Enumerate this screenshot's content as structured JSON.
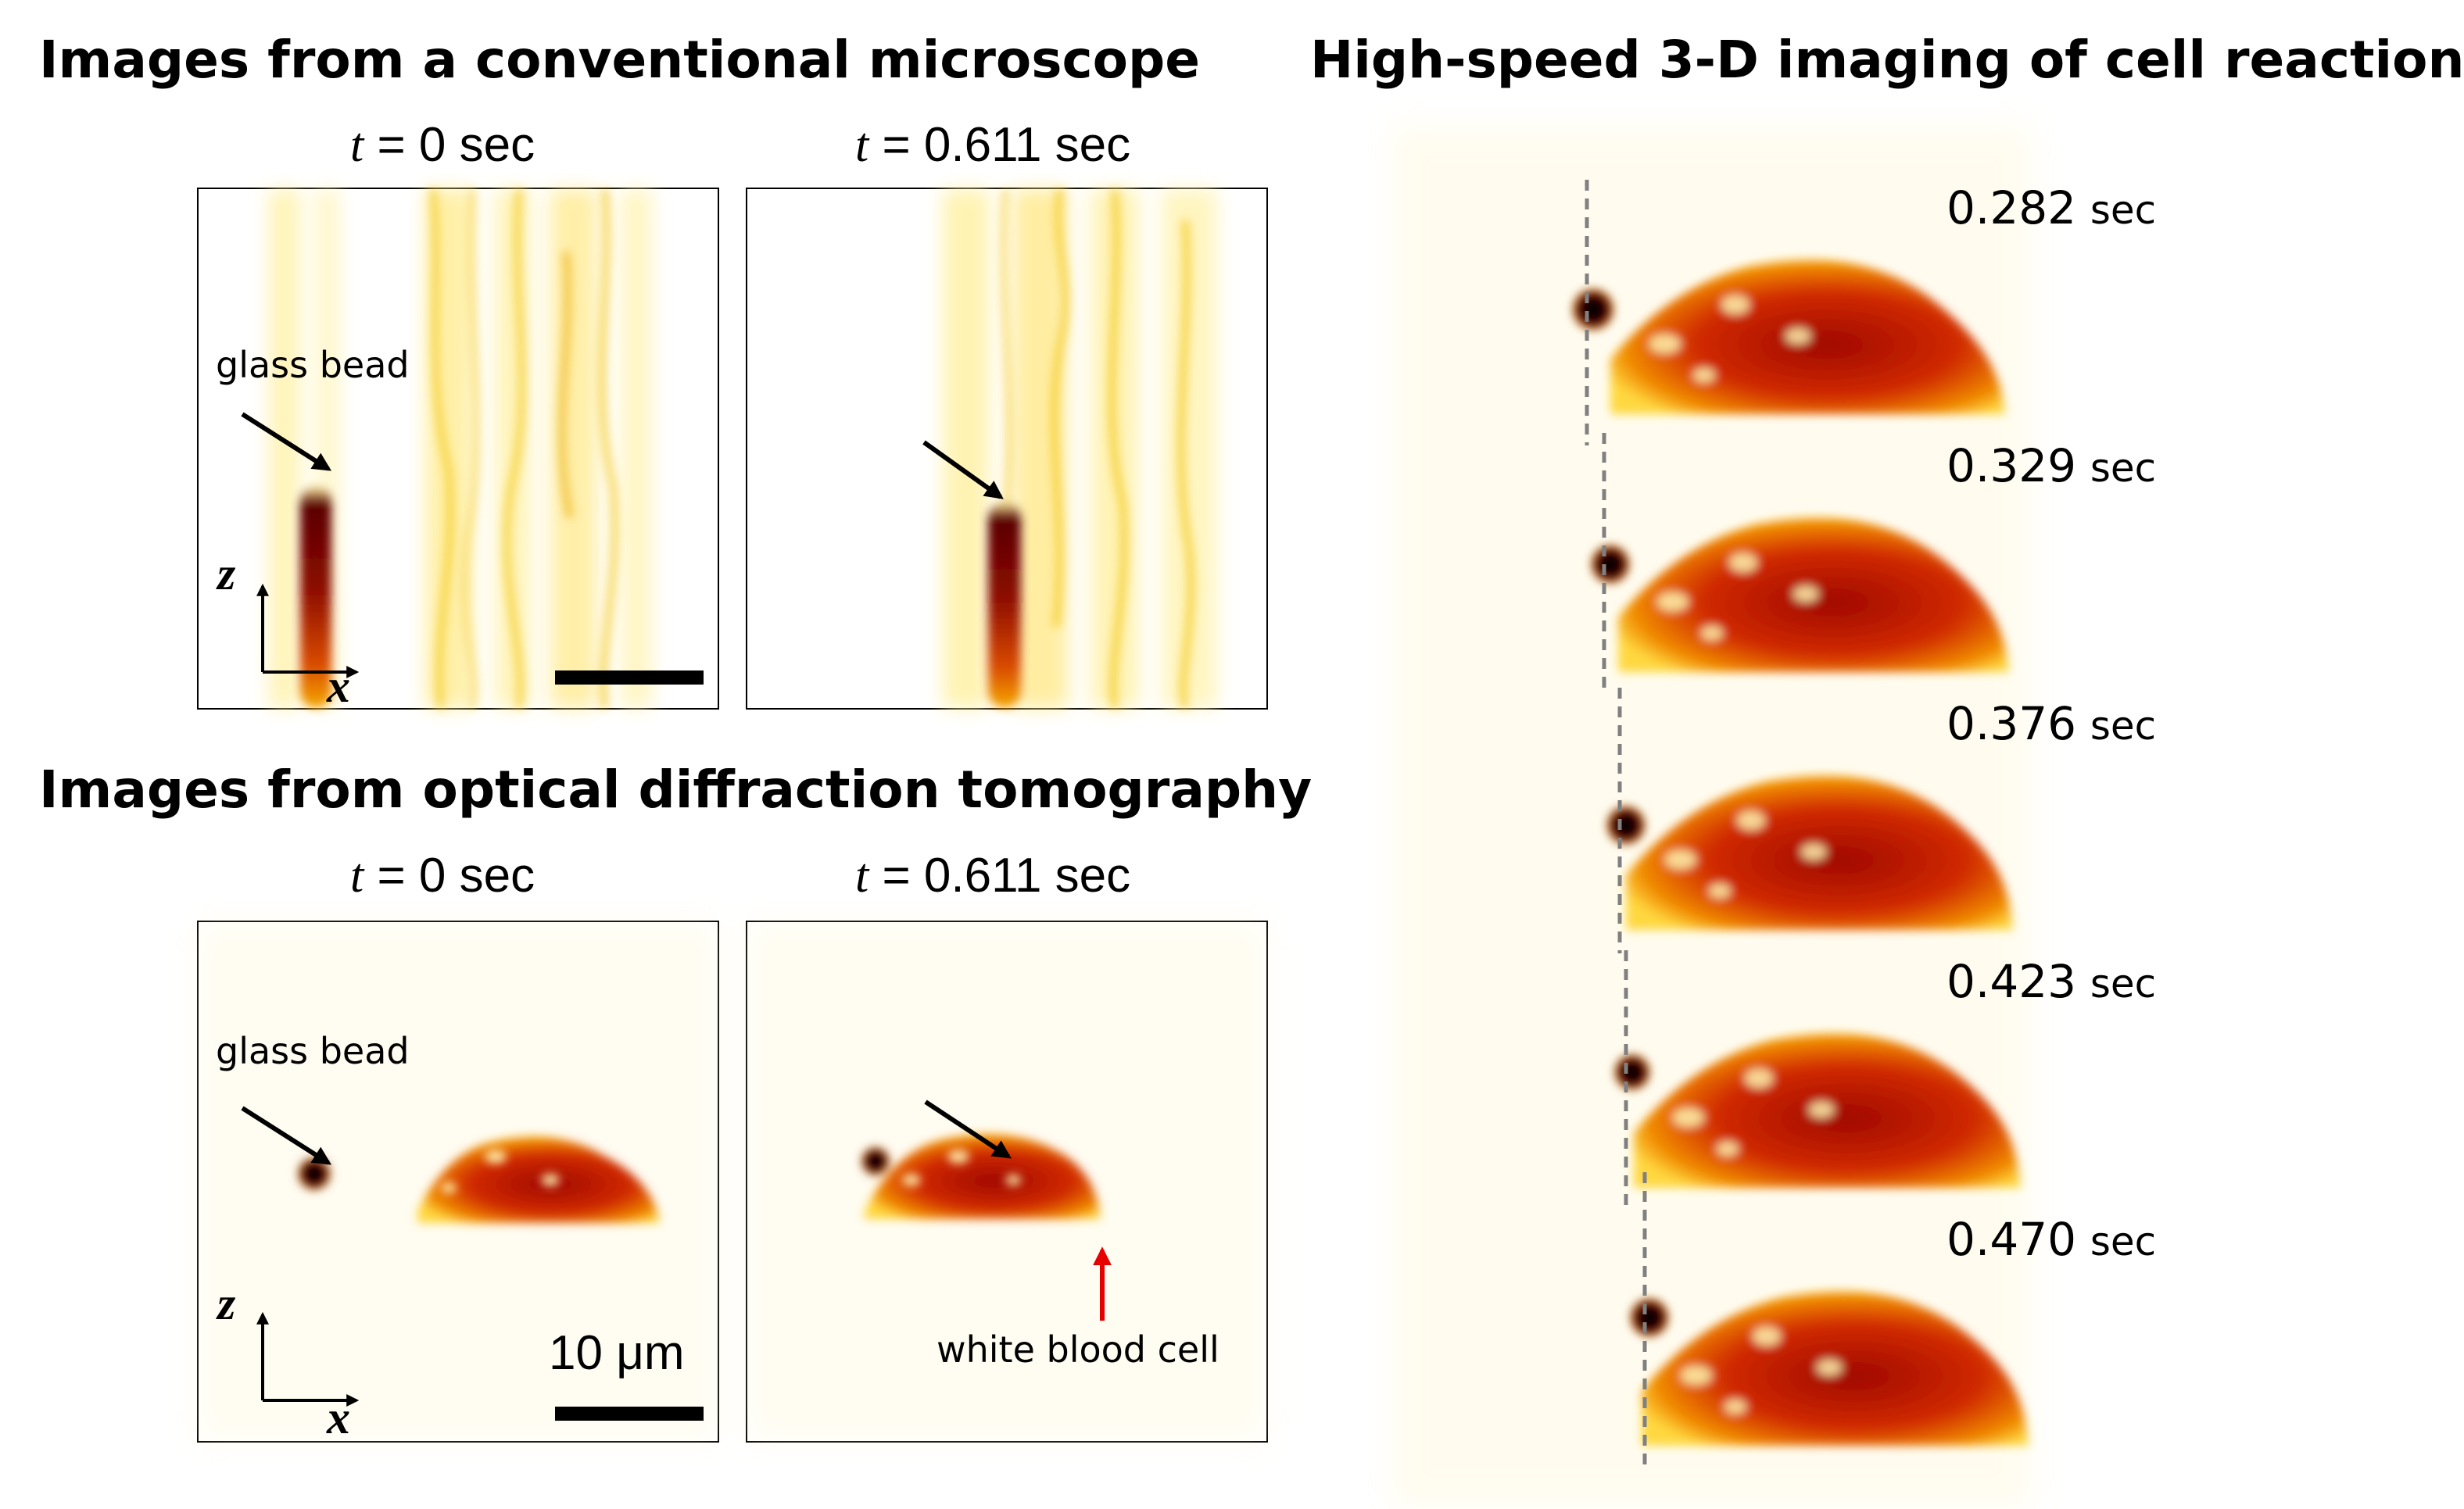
{
  "conventional": {
    "title": "Images from a conventional microscope",
    "label_t0_var": "t",
    "label_t0_rest": " = 0  sec",
    "label_t1_var": "t",
    "label_t1_rest": " = 0.611 sec",
    "bead_label": "glass bead",
    "axis_z": "z",
    "axis_x": "x"
  },
  "odt": {
    "title": "Images from optical diffraction tomography",
    "label_t0_var": "t",
    "label_t0_rest": " = 0  sec",
    "label_t1_var": "t",
    "label_t1_rest": " = 0.611 sec",
    "bead_label": "glass bead",
    "cell_label": "white blood cell",
    "scale_label": "10 μm",
    "axis_z": "z",
    "axis_x": "x"
  },
  "highspeed": {
    "title": "High-speed 3-D imaging of cell reaction",
    "frames": [
      {
        "time": "0.282",
        "unit": "sec"
      },
      {
        "time": "0.329",
        "unit": "sec"
      },
      {
        "time": "0.376",
        "unit": "sec"
      },
      {
        "time": "0.423",
        "unit": "sec"
      },
      {
        "time": "0.470",
        "unit": "sec"
      }
    ]
  },
  "colors": {
    "colormap_low": "#fff6c0",
    "colormap_mid": "#e8700a",
    "colormap_high": "#7a0000",
    "arrow_black": "#000000",
    "arrow_red": "#e60000",
    "dashed_line": "#808080"
  }
}
